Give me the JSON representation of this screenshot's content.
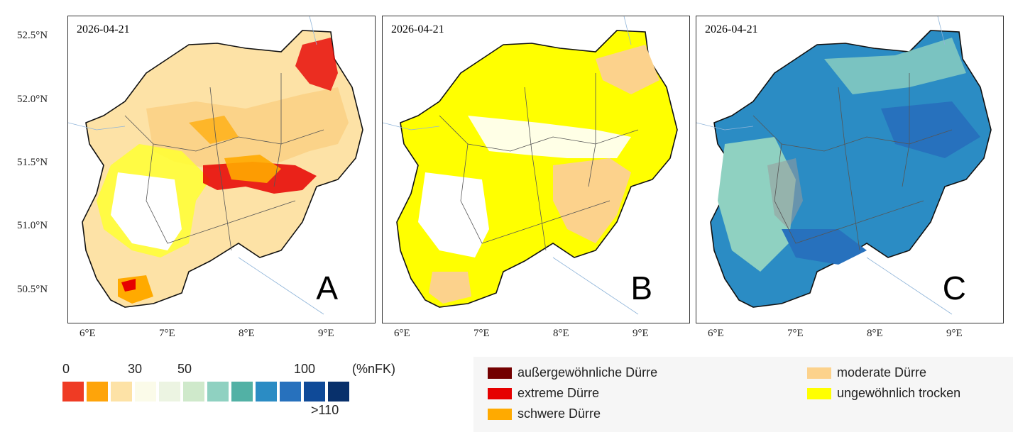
{
  "panels": [
    {
      "date": "2026-04-21",
      "letter": "A"
    },
    {
      "date": "2026-04-21",
      "letter": "B"
    },
    {
      "date": "2026-04-21",
      "letter": "C"
    }
  ],
  "axes": {
    "lat_labels": [
      "52.5°N",
      "52.0°N",
      "51.5°N",
      "51.0°N",
      "50.5°N"
    ],
    "lon_labels": [
      "6°E",
      "7°E",
      "8°E",
      "9°E"
    ]
  },
  "scale": {
    "numbers": [
      "0",
      "30",
      "50",
      "100",
      "(%nFK)",
      ">110"
    ],
    "colors": [
      "#ef3b24",
      "#fea40a",
      "#fde2a6",
      "#fbfbe9",
      "#ecf4e2",
      "#cfe9cb",
      "#8fd1c1",
      "#52b1a5",
      "#2b8cc4",
      "#2771bd",
      "#0f4a98",
      "#08306b"
    ]
  },
  "legend": [
    {
      "label": "außergewöhnliche Dürre",
      "color": "#730000"
    },
    {
      "label": "extreme Dürre",
      "color": "#e60000"
    },
    {
      "label": "schwere Dürre",
      "color": "#ffaa00"
    },
    {
      "label": "moderate Dürre",
      "color": "#fcd28c"
    },
    {
      "label": "ungewöhnlich trocken",
      "color": "#ffff00"
    }
  ]
}
